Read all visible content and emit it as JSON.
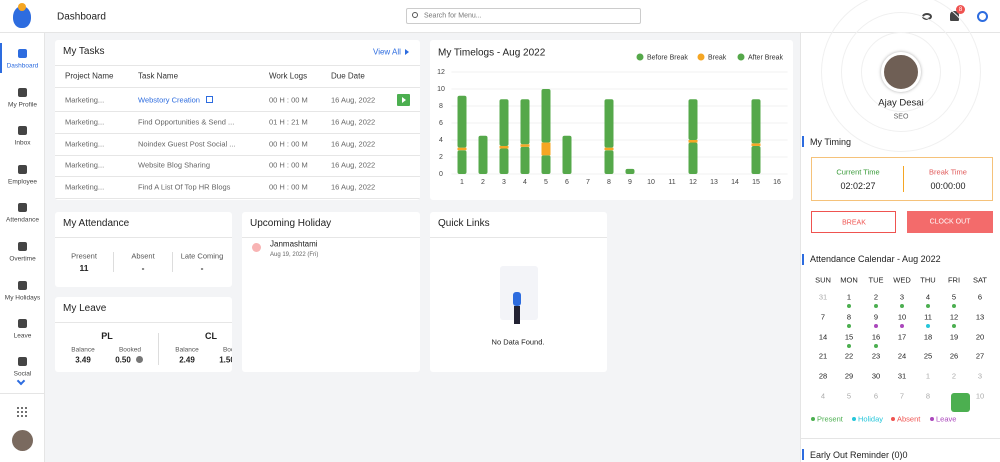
{
  "header": {
    "title": "Dashboard",
    "search_placeholder": "Search for Menu...",
    "notification_count": "8"
  },
  "sidebar": {
    "items": [
      "Dashboard",
      "My Profile",
      "Inbox",
      "Employee",
      "Attendance",
      "Overtime",
      "My Holidays",
      "Leave",
      "Social"
    ]
  },
  "tasks": {
    "title": "My Tasks",
    "view_all": "View All",
    "columns": [
      "Project Name",
      "Task Name",
      "Work Logs",
      "Due Date"
    ],
    "rows": [
      [
        "Marketing...",
        "Webstory Creation",
        "00 H : 00 M",
        "16 Aug, 2022"
      ],
      [
        "Marketing...",
        "Find Opportunities & Send ...",
        "01 H : 21 M",
        "16 Aug, 2022"
      ],
      [
        "Marketing...",
        "Noindex Guest Post Social ...",
        "00 H : 00 M",
        "16 Aug, 2022"
      ],
      [
        "Marketing...",
        "Website Blog Sharing",
        "00 H : 00 M",
        "16 Aug, 2022"
      ],
      [
        "Marketing...",
        "Find A List Of Top HR Blogs",
        "00 H : 00 M",
        "16 Aug, 2022"
      ]
    ]
  },
  "chart_data": {
    "type": "bar",
    "stacked": true,
    "title": "My Timelogs - Aug 2022",
    "categories": [
      "1",
      "2",
      "3",
      "4",
      "5",
      "6",
      "7",
      "8",
      "9",
      "10",
      "11",
      "12",
      "13",
      "14",
      "15",
      "16"
    ],
    "series": [
      {
        "name": "Before Break",
        "color": "#55a84a",
        "values": [
          2.8,
          4.5,
          3,
          3.2,
          2.2,
          4.5,
          0,
          2.8,
          0.6,
          0,
          0,
          3.7,
          0,
          0,
          3.3,
          0
        ]
      },
      {
        "name": "Break",
        "color": "#f5a623",
        "values": [
          0.3,
          0,
          0.3,
          0.3,
          1.5,
          0,
          0,
          0.3,
          0,
          0,
          0,
          0.3,
          0,
          0,
          0.3,
          0
        ]
      },
      {
        "name": "After Break",
        "color": "#55a84a",
        "values": [
          6.1,
          0,
          5.5,
          5.3,
          6.3,
          0,
          0,
          5.7,
          0,
          0,
          0,
          4.8,
          0,
          0,
          5.2,
          0
        ]
      }
    ],
    "ylim": [
      0,
      12
    ],
    "yticks": [
      0,
      2,
      4,
      6,
      8,
      10,
      12
    ],
    "grid": true,
    "legend": "top-right"
  },
  "attendance": {
    "title": "My Attendance",
    "items": [
      {
        "label": "Present",
        "value": "11"
      },
      {
        "label": "Absent",
        "value": "-"
      },
      {
        "label": "Late Coming",
        "value": "-"
      }
    ]
  },
  "leave": {
    "title": "My Leave",
    "types": [
      {
        "name": "PL",
        "balance_label": "Balance",
        "balance": "3.49",
        "booked_label": "Booked",
        "booked": "0.50"
      },
      {
        "name": "CL",
        "balance_label": "Balance",
        "balance": "2.49",
        "booked_label": "Booked",
        "booked": "1.50"
      }
    ]
  },
  "holiday": {
    "title": "Upcoming Holiday",
    "items": [
      {
        "name": "Janmashtami",
        "date": "Aug 19, 2022 (Fri)"
      }
    ]
  },
  "quick_links": {
    "title": "Quick Links",
    "empty": "No Data Found."
  },
  "profile": {
    "name": "Ajay Desai",
    "role": "SEO"
  },
  "timing": {
    "title": "My Timing",
    "current_label": "Current Time",
    "current_value": "02:02:27",
    "break_label": "Break Time",
    "break_value": "00:00:00",
    "break_button": "BREAK",
    "clock_out_button": "CLOCK OUT"
  },
  "calendar": {
    "title": "Attendance Calendar - Aug 2022",
    "weekdays": [
      "SUN",
      "MON",
      "TUE",
      "WED",
      "THU",
      "FRI",
      "SAT"
    ],
    "weeks": [
      [
        {
          "day": 31,
          "muted": true
        },
        {
          "day": 1,
          "status": "Present"
        },
        {
          "day": 2,
          "status": "Present"
        },
        {
          "day": 3,
          "status": "Present"
        },
        {
          "day": 4,
          "status": "Present"
        },
        {
          "day": 5,
          "status": "Present"
        },
        {
          "day": 6
        }
      ],
      [
        {
          "day": 7
        },
        {
          "day": 8,
          "status": "Present"
        },
        {
          "day": 9,
          "status": "Leave"
        },
        {
          "day": 10,
          "status": "Leave"
        },
        {
          "day": 11,
          "status": "Holiday"
        },
        {
          "day": 12,
          "status": "Present"
        },
        {
          "day": 13
        }
      ],
      [
        {
          "day": 14
        },
        {
          "day": 15,
          "status": "Present"
        },
        {
          "day": 16,
          "status": "Present"
        },
        {
          "day": 17
        },
        {
          "day": 18
        },
        {
          "day": 19
        },
        {
          "day": 20
        }
      ],
      [
        {
          "day": 21
        },
        {
          "day": 22
        },
        {
          "day": 23
        },
        {
          "day": 24
        },
        {
          "day": 25
        },
        {
          "day": 26
        },
        {
          "day": 27
        }
      ],
      [
        {
          "day": 28
        },
        {
          "day": 29
        },
        {
          "day": 30
        },
        {
          "day": 31
        },
        {
          "day": 1,
          "muted": true
        },
        {
          "day": 2,
          "muted": true
        },
        {
          "day": 3,
          "muted": true
        }
      ],
      [
        {
          "day": 4,
          "muted": true
        },
        {
          "day": 5,
          "muted": true
        },
        {
          "day": 6,
          "muted": true
        },
        {
          "day": 7,
          "muted": true
        },
        {
          "day": 8,
          "muted": true
        },
        {
          "day": 9,
          "muted": true
        },
        {
          "day": 10,
          "muted": true
        }
      ]
    ],
    "legend": [
      {
        "label": "Present",
        "color": "#4caf50"
      },
      {
        "label": "Holiday",
        "color": "#26c6da"
      },
      {
        "label": "Absent",
        "color": "#ef5350"
      },
      {
        "label": "Leave",
        "color": "#ab47bc"
      }
    ]
  },
  "early_out": {
    "title": "Early Out Reminder (0)0"
  }
}
